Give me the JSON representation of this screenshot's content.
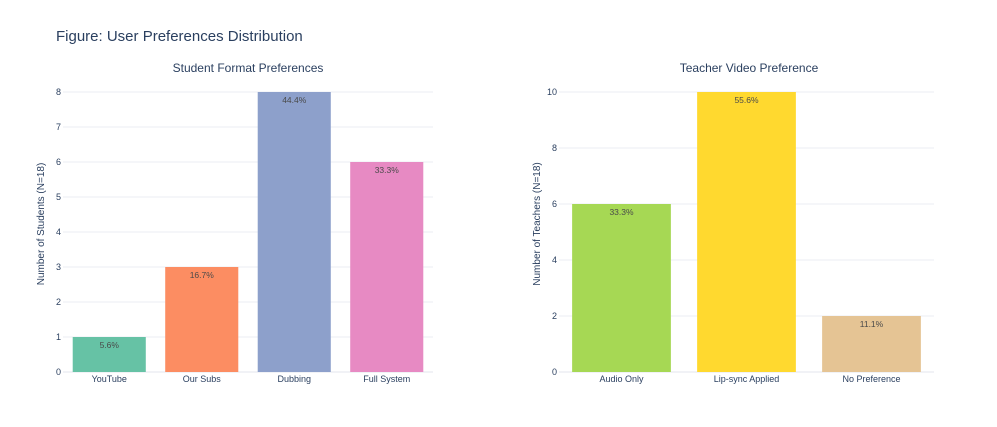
{
  "figure_title": "Figure: User Preferences Distribution",
  "chart_data": [
    {
      "type": "bar",
      "title": "Student Format Preferences",
      "xlabel": "",
      "ylabel": "Number of Students (N=18)",
      "categories": [
        "YouTube",
        "Our Subs",
        "Dubbing",
        "Full System"
      ],
      "values": [
        1,
        3,
        8,
        6
      ],
      "labels": [
        "5.6%",
        "16.7%",
        "44.4%",
        "33.3%"
      ],
      "colors": [
        "#66c2a5",
        "#fc8d62",
        "#8da0cb",
        "#e78ac3"
      ],
      "ylim": [
        0,
        8
      ],
      "yticks": [
        0,
        1,
        2,
        3,
        4,
        5,
        6,
        7,
        8
      ],
      "grid": true
    },
    {
      "type": "bar",
      "title": "Teacher Video Preference",
      "xlabel": "",
      "ylabel": "Number of Teachers (N=18)",
      "categories": [
        "Audio Only",
        "Lip-sync Applied",
        "No Preference"
      ],
      "values": [
        6,
        10,
        2
      ],
      "labels": [
        "33.3%",
        "55.6%",
        "11.1%"
      ],
      "colors": [
        "#a6d854",
        "#ffd92f",
        "#e5c494"
      ],
      "ylim": [
        0,
        10
      ],
      "yticks": [
        0,
        2,
        4,
        6,
        8,
        10
      ],
      "grid": true
    }
  ]
}
